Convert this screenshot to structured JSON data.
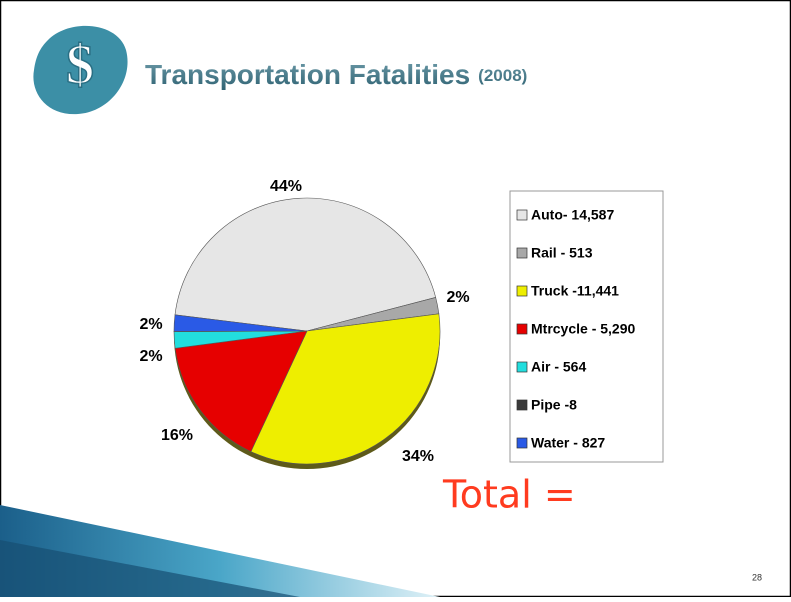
{
  "chart_data": {
    "type": "pie",
    "title": "Transportation Fatalities",
    "subtitle": "(2008)",
    "categories": [
      "Auto- 14,587",
      "Rail - 513",
      "Truck -11,441",
      "Mtrcycle - 5,290",
      "Air - 564",
      "Pipe -8",
      "Water - 827"
    ],
    "values": [
      44,
      2,
      34,
      16,
      2,
      0.02,
      2
    ],
    "value_labels": [
      "44%",
      "2%",
      "34%",
      "16%",
      "2%",
      null,
      "2%"
    ],
    "colors": [
      "#e6e6e6",
      "#a8a8a8",
      "#eeee00",
      "#e60000",
      "#22dede",
      "#3a3a3a",
      "#2a5ae6"
    ],
    "legend": "right",
    "annotation": "Total =",
    "page_number": "28"
  }
}
